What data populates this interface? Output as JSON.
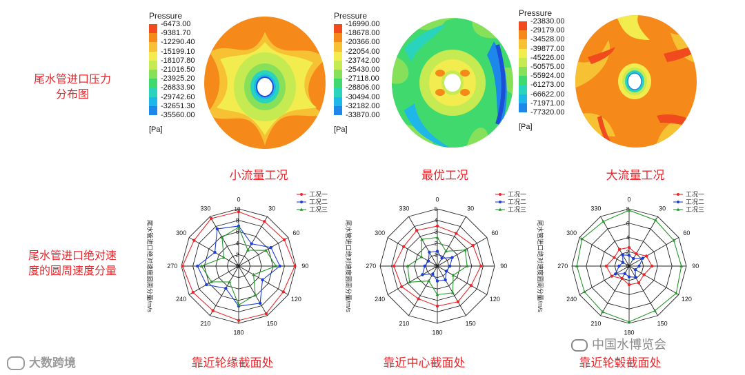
{
  "row_labels": {
    "pressure": [
      "尾水管进口压力",
      "分布图"
    ],
    "velocity": [
      "尾水管进口绝对速",
      "度的圆周速度分量"
    ]
  },
  "captions": {
    "top": [
      "小流量工况",
      "最优工况",
      "大流量工况"
    ],
    "bottom": [
      "靠近轮缘截面处",
      "靠近中心截面处",
      "靠近轮毂截面处"
    ]
  },
  "watermarks": {
    "left": "大数跨境",
    "right": "中国水博览会"
  },
  "colors": {
    "accent_red": "#e8262b",
    "scale": [
      "#f04a1e",
      "#f58a1a",
      "#f6c233",
      "#f2ec4e",
      "#c6ea52",
      "#86e05a",
      "#3fd96e",
      "#2ad4bc",
      "#1fb6e8",
      "#1d88ea",
      "#1d4fd6",
      "#2034b8"
    ]
  },
  "legends": [
    {
      "title": "Pressure",
      "unit": "[Pa]",
      "values": [
        "-6473.00",
        "-9381.70",
        "-12290.40",
        "-15199.10",
        "-18107.80",
        "-21016.50",
        "-23925.20",
        "-26833.90",
        "-29742.60",
        "-32651.30",
        "-35560.00"
      ]
    },
    {
      "title": "Pressure",
      "unit": "[Pa]",
      "values": [
        "-16990.00",
        "-18678.00",
        "-20366.00",
        "-22054.00",
        "-23742.00",
        "-25430.00",
        "-27118.00",
        "-28806.00",
        "-30494.00",
        "-32182.00",
        "-33870.00"
      ]
    },
    {
      "title": "Pressure",
      "unit": "[Pa]",
      "values": [
        "-23830.00",
        "-29179.00",
        "-34528.00",
        "-39877.00",
        "-45226.00",
        "-50575.00",
        "-55924.00",
        "-61273.00",
        "-66622.00",
        "-71971.00",
        "-77320.00"
      ]
    }
  ],
  "chart_data": [
    {
      "type": "radar",
      "title": "靠近轮缘截面处",
      "ylabel": "尾水管进口绝对速度圆周分量/m/s",
      "angles": [
        0,
        30,
        60,
        90,
        120,
        150,
        180,
        210,
        240,
        270,
        300,
        330
      ],
      "rlim": [
        0,
        10
      ],
      "rticks": [
        0,
        2,
        4,
        6,
        8,
        10
      ],
      "series": [
        {
          "name": "工况一",
          "color": "#e8262b",
          "marker": "circle",
          "values": [
            9.5,
            9.0,
            9.2,
            9.8,
            9.0,
            9.6,
            9.5,
            9.0,
            9.2,
            9.8,
            9.0,
            9.6
          ]
        },
        {
          "name": "工况二",
          "color": "#1c3cd6",
          "marker": "circle",
          "values": [
            7.0,
            4.5,
            6.5,
            7.2,
            4.8,
            7.5,
            7.0,
            4.5,
            6.5,
            7.2,
            4.8,
            7.5
          ]
        },
        {
          "name": "工况三",
          "color": "#23962a",
          "marker": "triangle",
          "values": [
            6.8,
            3.2,
            5.5,
            6.5,
            3.0,
            5.8,
            6.8,
            3.2,
            5.5,
            6.5,
            3.0,
            5.8
          ]
        }
      ]
    },
    {
      "type": "radar",
      "title": "靠近中心截面处",
      "ylabel": "尾水管进口绝对速度圆周分量/m/s",
      "angles": [
        0,
        30,
        60,
        90,
        120,
        150,
        180,
        210,
        240,
        270,
        300,
        330
      ],
      "rlim": [
        0,
        5
      ],
      "rticks": [
        0,
        1,
        2,
        3,
        4,
        5
      ],
      "series": [
        {
          "name": "工况一",
          "color": "#e8262b",
          "marker": "circle",
          "values": [
            3.5,
            3.3,
            3.6,
            3.8,
            3.4,
            3.6,
            3.5,
            3.3,
            3.6,
            3.8,
            3.4,
            3.6
          ]
        },
        {
          "name": "工况二",
          "color": "#1c3cd6",
          "marker": "circle",
          "values": [
            1.3,
            0.8,
            1.5,
            1.1,
            0.9,
            1.4,
            1.3,
            0.8,
            1.5,
            1.1,
            0.9,
            1.4
          ]
        },
        {
          "name": "工况三",
          "color": "#23962a",
          "marker": "triangle",
          "values": [
            2.5,
            1.5,
            2.8,
            2.6,
            1.6,
            2.7,
            2.5,
            1.5,
            2.8,
            2.6,
            1.6,
            2.7
          ]
        }
      ]
    },
    {
      "type": "radar",
      "title": "靠近轮毂截面处",
      "ylabel": "尾水管进口绝对速度圆周分量/m/s",
      "angles": [
        0,
        30,
        60,
        90,
        120,
        150,
        180,
        210,
        240,
        270,
        300,
        330
      ],
      "rlim": [
        0,
        8
      ],
      "rticks": [
        0,
        2,
        4,
        6,
        8
      ],
      "series": [
        {
          "name": "工况一",
          "color": "#e8262b",
          "marker": "circle",
          "values": [
            2.6,
            2.0,
            2.8,
            3.2,
            2.4,
            2.7,
            2.6,
            2.0,
            2.8,
            3.2,
            2.4,
            2.7
          ]
        },
        {
          "name": "工况二",
          "color": "#1c3cd6",
          "marker": "circle",
          "values": [
            1.5,
            1.2,
            2.2,
            1.4,
            1.0,
            1.8,
            1.5,
            1.2,
            2.2,
            1.4,
            1.0,
            1.8
          ]
        },
        {
          "name": "工况三",
          "color": "#23962a",
          "marker": "triangle",
          "values": [
            7.8,
            7.4,
            7.2,
            7.3,
            7.6,
            7.2,
            7.8,
            7.4,
            7.2,
            7.3,
            7.6,
            7.2
          ]
        }
      ]
    }
  ]
}
